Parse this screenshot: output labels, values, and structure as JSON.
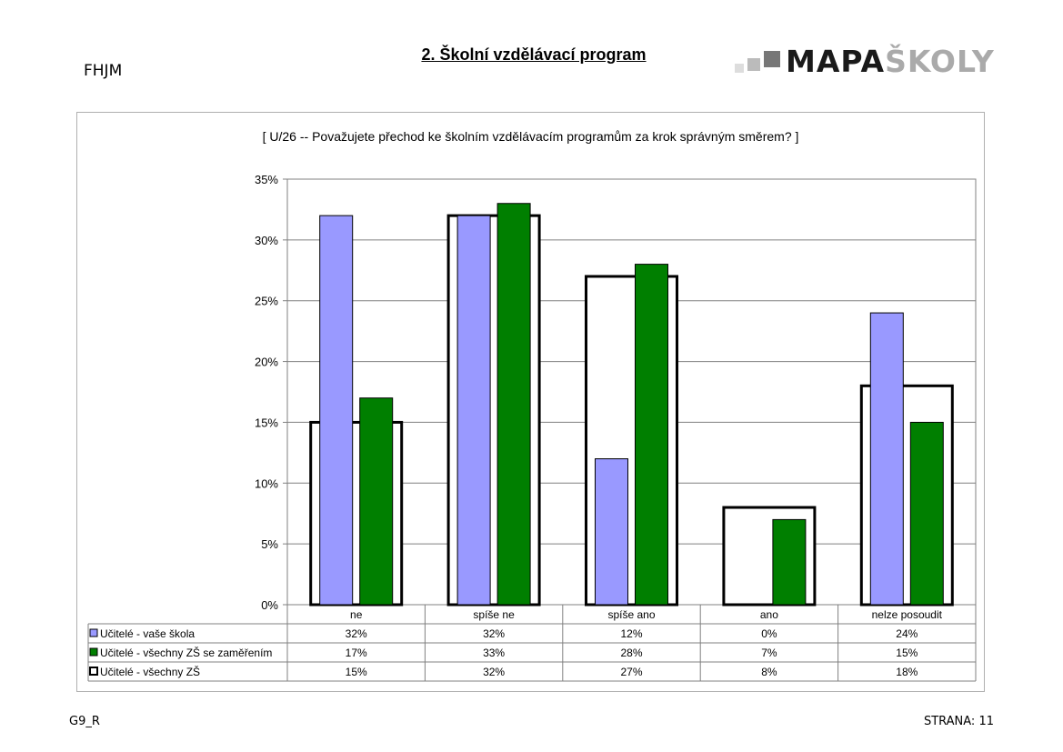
{
  "header": {
    "school_code": "FHJM",
    "section_title": "2. Školní vzdělávací program",
    "logo": {
      "part1": "MAPA",
      "part2": "ŠKOLY"
    }
  },
  "footer": {
    "left": "G9_R",
    "right": "STRANA: 11"
  },
  "colors": {
    "school": "#9999ff",
    "all_zs_focus": "#007f00",
    "all_zs": "#ffffff",
    "outline": "#000000",
    "grid": "#808080"
  },
  "chart_data": {
    "type": "bar",
    "title": "[ U/26 -- Považujete přechod ke školním vzdělávacím programům za krok správným směrem? ]",
    "categories": [
      "ne",
      "spíše ne",
      "spíše ano",
      "ano",
      "nelze posoudit"
    ],
    "ylim": [
      0,
      35
    ],
    "yticks": [
      0,
      5,
      10,
      15,
      20,
      25,
      30,
      35
    ],
    "ytick_labels": [
      "0%",
      "5%",
      "10%",
      "15%",
      "20%",
      "25%",
      "30%",
      "35%"
    ],
    "grid": true,
    "legend_placement": "data-table",
    "series": [
      {
        "name": "Učitelé - vaše škola",
        "values": [
          32,
          32,
          12,
          0,
          24
        ],
        "labels": [
          "32%",
          "32%",
          "12%",
          "0%",
          "24%"
        ],
        "style": "bar"
      },
      {
        "name": "Učitelé - všechny ZŠ se zaměřením",
        "values": [
          17,
          33,
          28,
          7,
          15
        ],
        "labels": [
          "17%",
          "33%",
          "28%",
          "7%",
          "15%"
        ],
        "style": "bar"
      },
      {
        "name": "Učitelé - všechny ZŠ",
        "values": [
          15,
          32,
          27,
          8,
          18
        ],
        "labels": [
          "15%",
          "32%",
          "27%",
          "8%",
          "18%"
        ],
        "style": "outline"
      }
    ]
  }
}
